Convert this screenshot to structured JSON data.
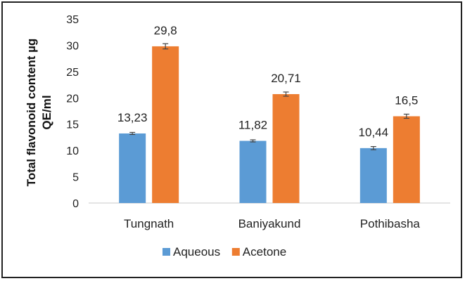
{
  "chart_data": {
    "type": "bar",
    "categories": [
      "Tungnath",
      "Baniyakund",
      "Pothibasha"
    ],
    "series": [
      {
        "name": "Aqueous",
        "values": [
          13.23,
          11.82,
          10.44
        ],
        "labels": [
          "13,23",
          "11,82",
          "10,44"
        ],
        "errors": [
          0.2,
          0.2,
          0.3
        ],
        "color": "#5B9BD5"
      },
      {
        "name": "Acetone",
        "values": [
          29.8,
          20.71,
          16.5
        ],
        "labels": [
          "29,8",
          "20,71",
          "16,5"
        ],
        "errors": [
          0.5,
          0.4,
          0.4
        ],
        "color": "#ED7D31"
      }
    ],
    "title": "",
    "xlabel": "",
    "ylabel_lines": [
      "Total flavonoid content µg",
      "QE/ml"
    ],
    "ylim": [
      0,
      35
    ],
    "yticks": [
      "0",
      "5",
      "10",
      "15",
      "20",
      "25",
      "30",
      "35"
    ],
    "grid": false,
    "legend": "bottom"
  }
}
